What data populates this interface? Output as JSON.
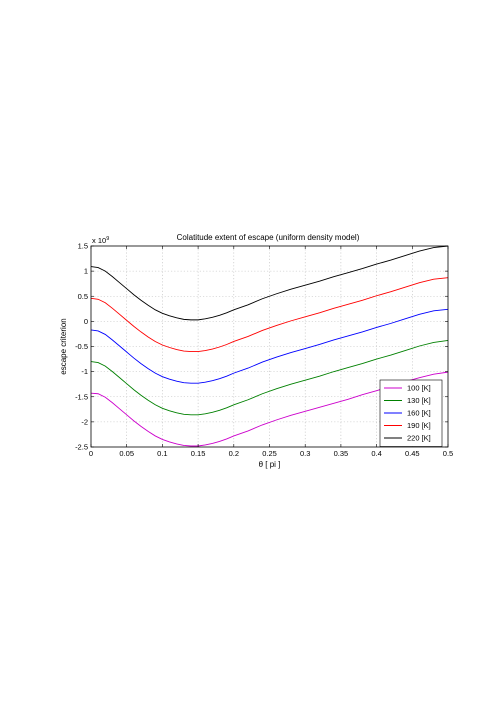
{
  "chart_data": {
    "type": "line",
    "title": "Colatitude extent of escape (uniform density model)",
    "xlabel": "θ [ pi ]",
    "ylabel": "escape criterion",
    "y_exponent_label": "x 10",
    "y_exponent_power": "9",
    "xlim": [
      0,
      0.5
    ],
    "ylim": [
      -2.5,
      1.5
    ],
    "xticks": [
      0,
      0.05,
      0.1,
      0.15,
      0.2,
      0.25,
      0.3,
      0.35,
      0.4,
      0.45,
      0.5
    ],
    "xtick_labels": [
      "0",
      "0.05",
      "0.1",
      "0.15",
      "0.2",
      "0.25",
      "0.3",
      "0.35",
      "0.4",
      "0.45",
      "0.5"
    ],
    "yticks": [
      -2.5,
      -2,
      -1.5,
      -1,
      -0.5,
      0,
      0.5,
      1,
      1.5
    ],
    "ytick_labels": [
      "-2.5",
      "-2",
      "-1.5",
      "-1",
      "-0.5",
      "0",
      "0.5",
      "1",
      "1.5"
    ],
    "grid": true,
    "legend_position": "lower-right",
    "x": [
      0,
      0.01,
      0.02,
      0.03,
      0.04,
      0.05,
      0.06,
      0.07,
      0.08,
      0.09,
      0.1,
      0.11,
      0.12,
      0.13,
      0.14,
      0.15,
      0.16,
      0.17,
      0.18,
      0.19,
      0.2,
      0.22,
      0.24,
      0.26,
      0.28,
      0.3,
      0.32,
      0.34,
      0.36,
      0.38,
      0.4,
      0.42,
      0.44,
      0.46,
      0.48,
      0.5
    ],
    "series": [
      {
        "name": "100 [K]",
        "color": "#cc00cc",
        "values": [
          -1.43,
          -1.44,
          -1.51,
          -1.62,
          -1.74,
          -1.86,
          -1.98,
          -2.09,
          -2.19,
          -2.28,
          -2.35,
          -2.4,
          -2.44,
          -2.47,
          -2.48,
          -2.48,
          -2.46,
          -2.43,
          -2.39,
          -2.34,
          -2.28,
          -2.18,
          -2.06,
          -1.96,
          -1.87,
          -1.79,
          -1.71,
          -1.63,
          -1.55,
          -1.46,
          -1.38,
          -1.29,
          -1.2,
          -1.12,
          -1.05,
          -1.01
        ]
      },
      {
        "name": "130 [K]",
        "color": "#008000",
        "values": [
          -0.8,
          -0.82,
          -0.89,
          -1.0,
          -1.12,
          -1.24,
          -1.36,
          -1.47,
          -1.57,
          -1.66,
          -1.73,
          -1.78,
          -1.82,
          -1.85,
          -1.86,
          -1.86,
          -1.84,
          -1.81,
          -1.77,
          -1.72,
          -1.66,
          -1.56,
          -1.44,
          -1.34,
          -1.25,
          -1.17,
          -1.09,
          -1.0,
          -0.92,
          -0.84,
          -0.75,
          -0.67,
          -0.58,
          -0.49,
          -0.42,
          -0.38
        ]
      },
      {
        "name": "160 [K]",
        "color": "#0000ff",
        "values": [
          -0.17,
          -0.19,
          -0.26,
          -0.37,
          -0.49,
          -0.61,
          -0.73,
          -0.84,
          -0.94,
          -1.03,
          -1.1,
          -1.15,
          -1.19,
          -1.22,
          -1.23,
          -1.23,
          -1.21,
          -1.18,
          -1.14,
          -1.09,
          -1.03,
          -0.93,
          -0.81,
          -0.71,
          -0.62,
          -0.54,
          -0.46,
          -0.37,
          -0.29,
          -0.21,
          -0.12,
          -0.04,
          0.05,
          0.14,
          0.21,
          0.24
        ]
      },
      {
        "name": "190 [K]",
        "color": "#ff0000",
        "values": [
          0.46,
          0.44,
          0.37,
          0.26,
          0.14,
          0.02,
          -0.1,
          -0.21,
          -0.31,
          -0.4,
          -0.47,
          -0.52,
          -0.56,
          -0.59,
          -0.6,
          -0.6,
          -0.58,
          -0.55,
          -0.51,
          -0.46,
          -0.4,
          -0.3,
          -0.18,
          -0.08,
          0.01,
          0.09,
          0.17,
          0.26,
          0.34,
          0.42,
          0.51,
          0.59,
          0.68,
          0.77,
          0.84,
          0.87
        ]
      },
      {
        "name": "220 [K]",
        "color": "#000000",
        "values": [
          1.09,
          1.07,
          1.0,
          0.89,
          0.77,
          0.65,
          0.53,
          0.42,
          0.32,
          0.23,
          0.16,
          0.11,
          0.07,
          0.04,
          0.03,
          0.03,
          0.05,
          0.08,
          0.12,
          0.17,
          0.23,
          0.33,
          0.45,
          0.55,
          0.64,
          0.72,
          0.8,
          0.89,
          0.97,
          1.05,
          1.14,
          1.22,
          1.31,
          1.4,
          1.47,
          1.5
        ]
      }
    ]
  }
}
